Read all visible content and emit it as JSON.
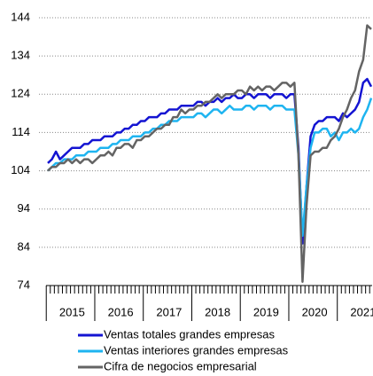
{
  "chart_data": {
    "type": "line",
    "categories": [
      null,
      null,
      null,
      null,
      null,
      null,
      "2015",
      null,
      null,
      null,
      null,
      null,
      null,
      null,
      null,
      null,
      null,
      null,
      "2016",
      null,
      null,
      null,
      null,
      null,
      null,
      null,
      null,
      null,
      null,
      null,
      "2017",
      null,
      null,
      null,
      null,
      null,
      null,
      null,
      null,
      null,
      null,
      null,
      "2018",
      null,
      null,
      null,
      null,
      null,
      null,
      null,
      null,
      null,
      null,
      null,
      "2019",
      null,
      null,
      null,
      null,
      null,
      null,
      null,
      null,
      null,
      null,
      null,
      "2020",
      null,
      null,
      null,
      null,
      null,
      null,
      null,
      null,
      null,
      null,
      null,
      "2021",
      null,
      null
    ],
    "series": [
      {
        "name": "Ventas totales grandes empresas",
        "color": "#1414d2",
        "values": [
          106,
          107,
          109,
          107,
          108,
          109,
          110,
          110,
          110,
          111,
          111,
          112,
          112,
          112,
          113,
          113,
          113,
          114,
          114,
          115,
          115,
          116,
          116,
          117,
          117,
          118,
          118,
          118,
          119,
          119,
          120,
          120,
          120,
          121,
          121,
          121,
          121,
          122,
          122,
          121,
          122,
          122,
          123,
          122,
          123,
          123,
          124,
          123,
          123,
          124,
          124,
          123,
          124,
          124,
          124,
          123,
          124,
          124,
          124,
          123,
          124,
          124,
          110,
          85,
          100,
          113,
          116,
          117,
          117,
          118,
          118,
          118,
          117,
          119,
          118,
          119,
          120,
          122,
          127,
          128,
          126
        ]
      },
      {
        "name": "Ventas interiores grandes empresas",
        "color": "#1eb4f0",
        "values": [
          104,
          105,
          106,
          106,
          107,
          107,
          107,
          108,
          108,
          108,
          109,
          109,
          109,
          110,
          110,
          110,
          111,
          111,
          112,
          112,
          112,
          113,
          113,
          113,
          114,
          114,
          115,
          115,
          116,
          116,
          117,
          117,
          117,
          118,
          118,
          118,
          118,
          119,
          119,
          118,
          119,
          120,
          120,
          119,
          120,
          121,
          120,
          120,
          120,
          121,
          121,
          120,
          121,
          121,
          121,
          120,
          121,
          121,
          121,
          120,
          120,
          120,
          108,
          87,
          100,
          110,
          114,
          114,
          115,
          115,
          113,
          114,
          112,
          114,
          114,
          115,
          114,
          115,
          118,
          120,
          123
        ]
      },
      {
        "name": "Cifra de negocios empresarial",
        "color": "#646464",
        "values": [
          104,
          105,
          105,
          106,
          106,
          107,
          106,
          107,
          106,
          107,
          107,
          106,
          107,
          108,
          108,
          109,
          108,
          110,
          110,
          111,
          111,
          110,
          112,
          112,
          113,
          113,
          114,
          115,
          115,
          116,
          116,
          118,
          118,
          120,
          119,
          120,
          120,
          121,
          121,
          122,
          122,
          123,
          124,
          123,
          124,
          124,
          124,
          125,
          125,
          124,
          126,
          125,
          126,
          125,
          126,
          126,
          125,
          126,
          127,
          127,
          126,
          127,
          108,
          75,
          95,
          108,
          109,
          109,
          110,
          110,
          112,
          113,
          115,
          118,
          120,
          123,
          125,
          130,
          133,
          142,
          141
        ]
      }
    ],
    "ylim": [
      74,
      144
    ],
    "yticks": [
      74,
      84,
      94,
      104,
      114,
      124,
      134,
      144
    ],
    "grid": true
  }
}
